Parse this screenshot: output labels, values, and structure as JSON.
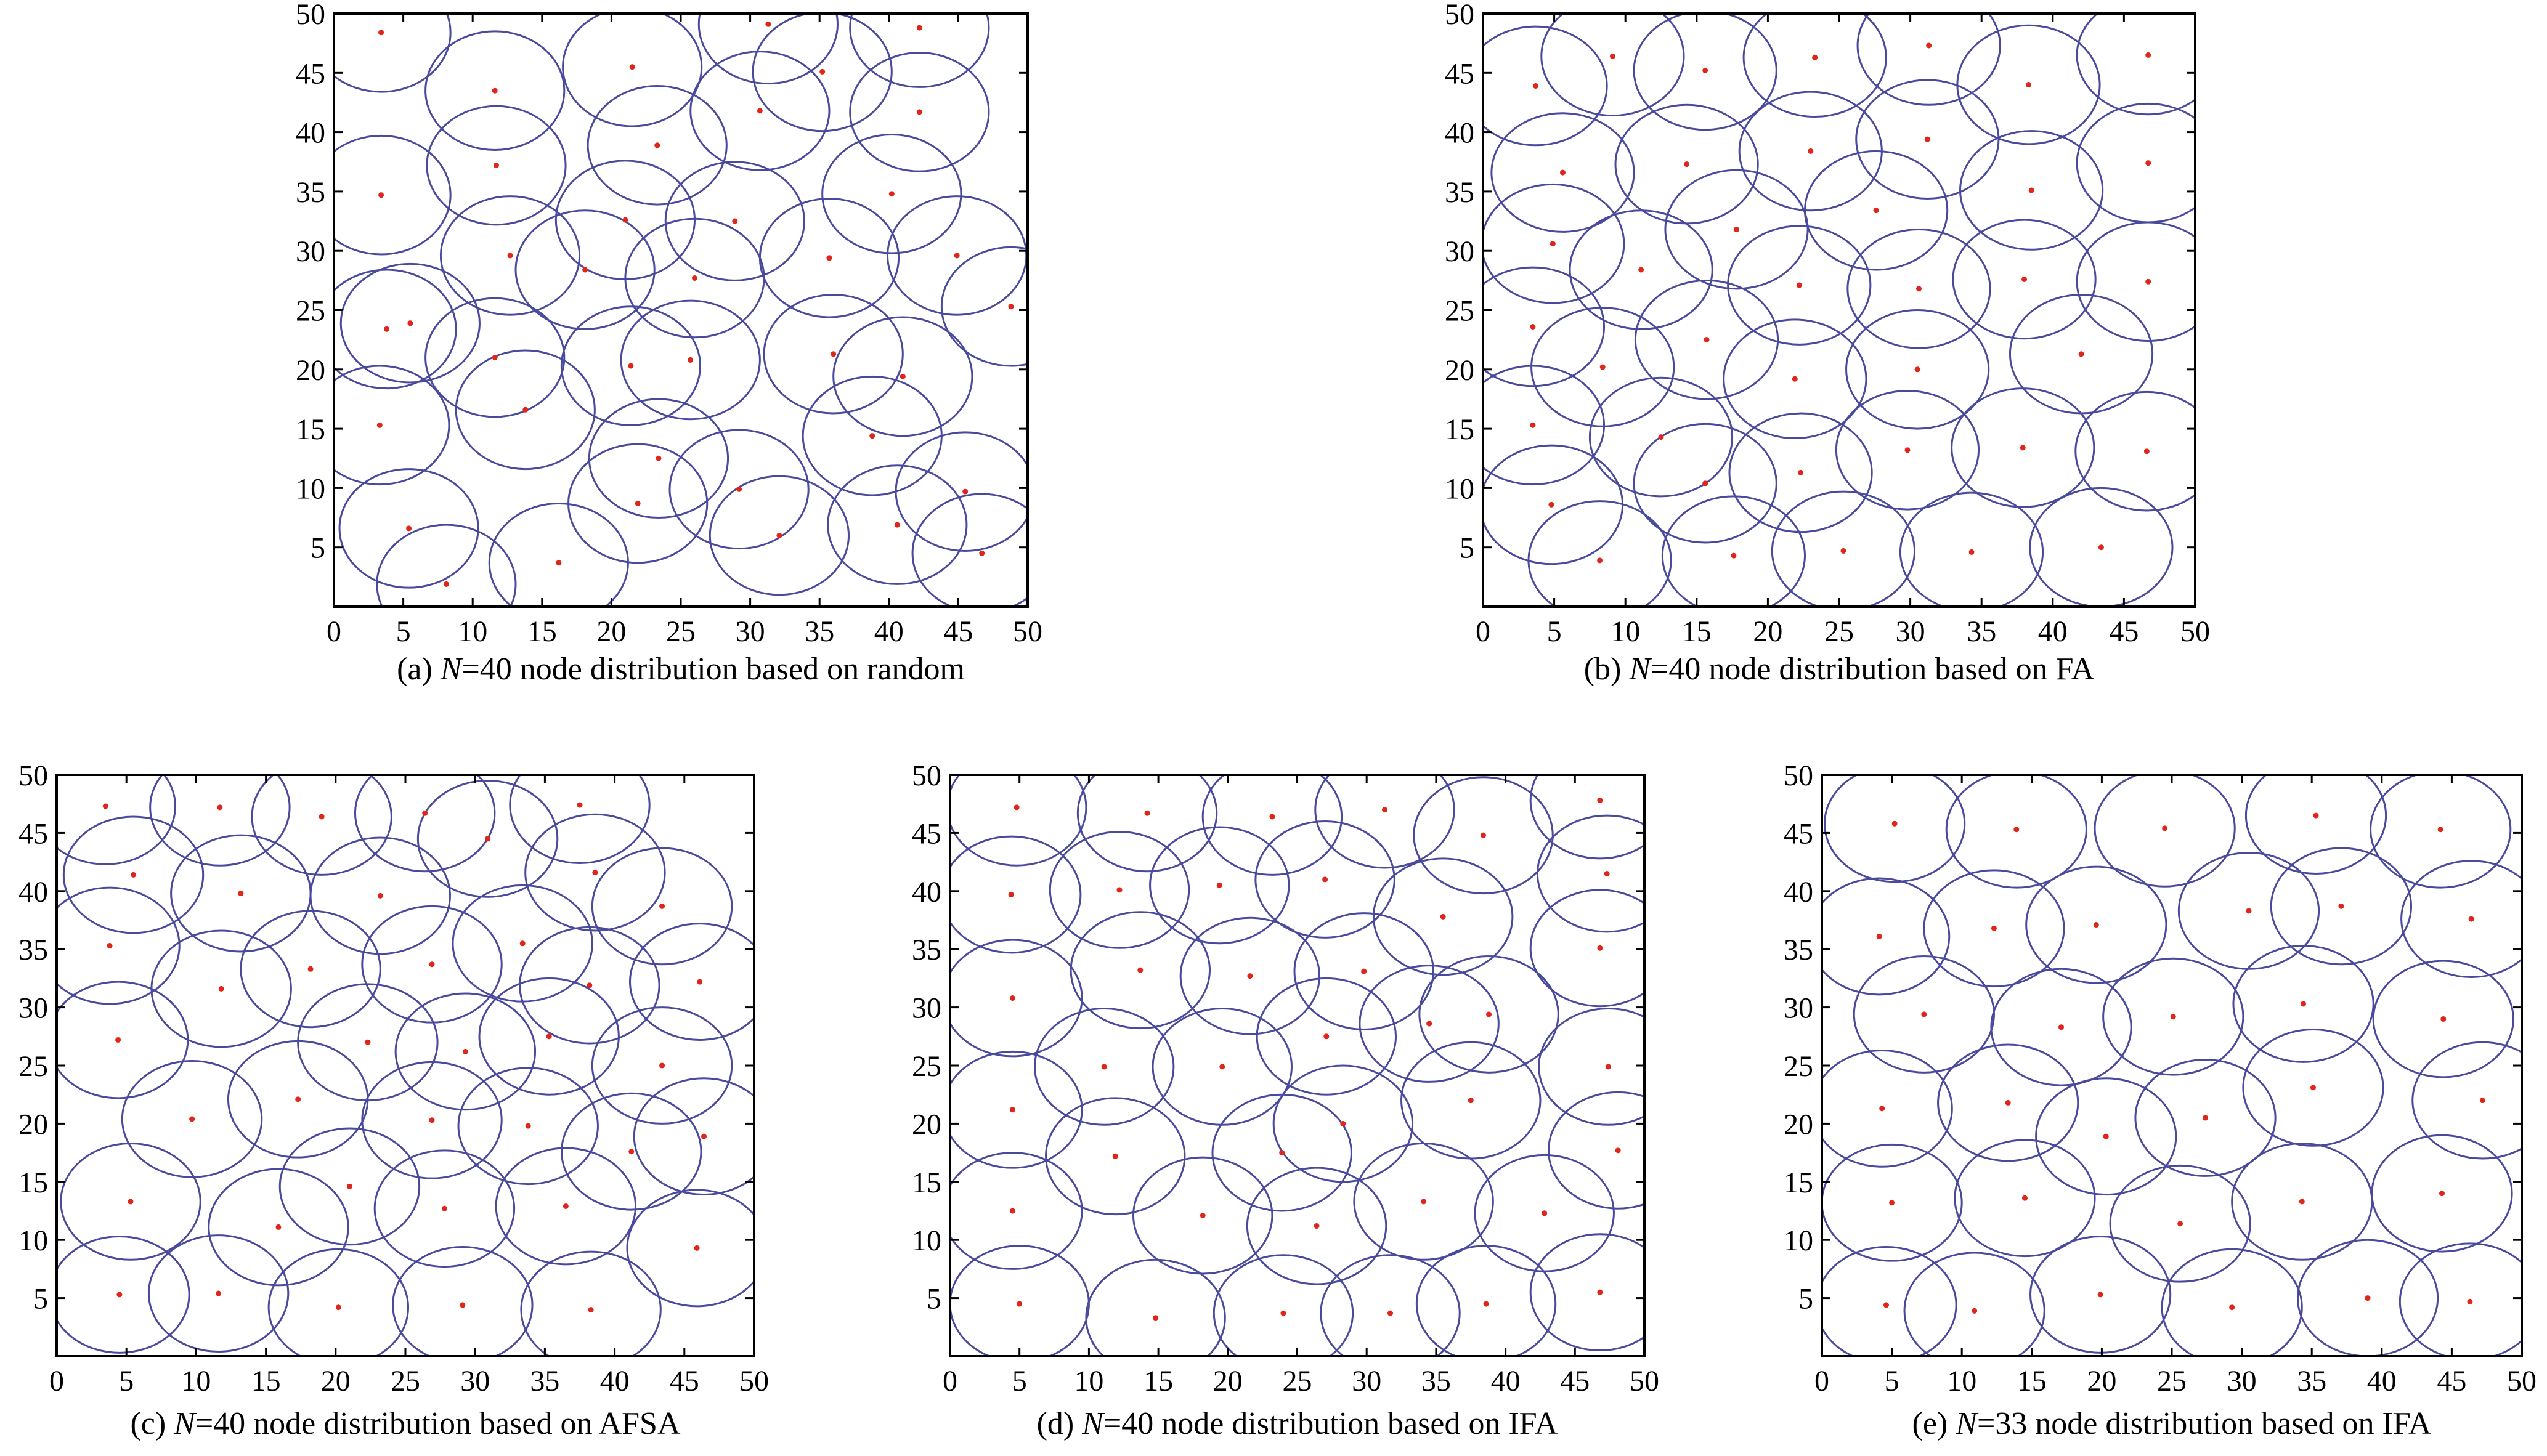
{
  "colors": {
    "circle": "#4a4a9c",
    "node": "#e0251b",
    "axis": "#000000",
    "background": "#ffffff"
  },
  "chart_data": [
    {
      "id": "a",
      "type": "scatter",
      "caption": {
        "label": "(a) ",
        "n_symbol": "N",
        "text": "=40 node distribution based on random"
      },
      "xlim": [
        0,
        50
      ],
      "ylim": [
        0,
        50
      ],
      "xticks": [
        "0",
        "5",
        "10",
        "15",
        "20",
        "25",
        "30",
        "35",
        "40",
        "45",
        "50"
      ],
      "yticks": [
        "5",
        "10",
        "15",
        "20",
        "25",
        "30",
        "35",
        "40",
        "45",
        "50"
      ],
      "coverage_radius": 5,
      "nodes": [
        [
          3.4,
          48.4
        ],
        [
          11.6,
          43.5
        ],
        [
          21.5,
          45.5
        ],
        [
          31.3,
          49.1
        ],
        [
          35.2,
          45.1
        ],
        [
          42.2,
          48.8
        ],
        [
          3.4,
          34.7
        ],
        [
          11.7,
          37.2
        ],
        [
          23.3,
          38.9
        ],
        [
          30.7,
          41.8
        ],
        [
          42.2,
          41.7
        ],
        [
          21.0,
          32.6
        ],
        [
          28.9,
          32.5
        ],
        [
          40.2,
          34.8
        ],
        [
          12.7,
          29.6
        ],
        [
          18.1,
          28.4
        ],
        [
          26.0,
          27.7
        ],
        [
          35.7,
          29.4
        ],
        [
          44.9,
          29.6
        ],
        [
          3.8,
          23.4
        ],
        [
          5.5,
          23.9
        ],
        [
          11.6,
          21.0
        ],
        [
          21.4,
          20.3
        ],
        [
          25.7,
          20.8
        ],
        [
          36.0,
          21.3
        ],
        [
          41.0,
          19.4
        ],
        [
          48.8,
          25.3
        ],
        [
          3.3,
          15.3
        ],
        [
          13.8,
          16.6
        ],
        [
          23.4,
          12.5
        ],
        [
          38.8,
          14.4
        ],
        [
          5.4,
          6.6
        ],
        [
          21.9,
          8.7
        ],
        [
          29.2,
          9.9
        ],
        [
          45.5,
          9.7
        ],
        [
          8.1,
          1.9
        ],
        [
          16.2,
          3.7
        ],
        [
          32.1,
          6.0
        ],
        [
          40.6,
          6.9
        ],
        [
          46.7,
          4.5
        ]
      ]
    },
    {
      "id": "b",
      "type": "scatter",
      "caption": {
        "label": "(b) ",
        "n_symbol": "N",
        "text": "=40 node distribution based on FA"
      },
      "xlim": [
        0,
        50
      ],
      "ylim": [
        0,
        50
      ],
      "xticks": [
        "0",
        "5",
        "10",
        "15",
        "20",
        "25",
        "30",
        "35",
        "40",
        "45",
        "50"
      ],
      "yticks": [
        "5",
        "10",
        "15",
        "20",
        "25",
        "30",
        "35",
        "40",
        "45",
        "50"
      ],
      "coverage_radius": 5,
      "nodes": [
        [
          3.7,
          43.9
        ],
        [
          9.1,
          46.4
        ],
        [
          15.6,
          45.2
        ],
        [
          23.3,
          46.3
        ],
        [
          31.3,
          47.3
        ],
        [
          38.3,
          44.0
        ],
        [
          46.7,
          46.5
        ],
        [
          5.6,
          36.6
        ],
        [
          14.3,
          37.3
        ],
        [
          23.0,
          38.4
        ],
        [
          31.2,
          39.4
        ],
        [
          38.5,
          35.1
        ],
        [
          46.7,
          37.4
        ],
        [
          4.9,
          30.6
        ],
        [
          11.1,
          28.4
        ],
        [
          17.8,
          31.8
        ],
        [
          27.6,
          33.4
        ],
        [
          22.2,
          27.1
        ],
        [
          30.6,
          26.8
        ],
        [
          38.0,
          27.6
        ],
        [
          46.7,
          27.4
        ],
        [
          3.5,
          23.6
        ],
        [
          8.4,
          20.2
        ],
        [
          15.7,
          22.5
        ],
        [
          21.9,
          19.2
        ],
        [
          30.5,
          20.0
        ],
        [
          42.0,
          21.3
        ],
        [
          3.5,
          15.3
        ],
        [
          12.5,
          14.3
        ],
        [
          15.6,
          10.4
        ],
        [
          22.3,
          11.3
        ],
        [
          29.8,
          13.2
        ],
        [
          37.9,
          13.4
        ],
        [
          46.6,
          13.1
        ],
        [
          4.8,
          8.6
        ],
        [
          8.2,
          3.9
        ],
        [
          17.6,
          4.3
        ],
        [
          25.3,
          4.7
        ],
        [
          34.3,
          4.6
        ],
        [
          43.4,
          5.0
        ]
      ]
    },
    {
      "id": "c",
      "type": "scatter",
      "caption": {
        "label": "(c) ",
        "n_symbol": "N",
        "text": "=40 node distribution based on AFSA"
      },
      "xlim": [
        0,
        50
      ],
      "ylim": [
        0,
        50
      ],
      "xticks": [
        "0",
        "5",
        "10",
        "15",
        "20",
        "25",
        "30",
        "35",
        "40",
        "45",
        "50"
      ],
      "yticks": [
        "5",
        "10",
        "15",
        "20",
        "25",
        "30",
        "35",
        "40",
        "45",
        "50"
      ],
      "coverage_radius": 5,
      "nodes": [
        [
          3.5,
          47.3
        ],
        [
          11.7,
          47.2
        ],
        [
          19.0,
          46.4
        ],
        [
          26.4,
          46.7
        ],
        [
          30.9,
          44.5
        ],
        [
          37.5,
          47.4
        ],
        [
          5.5,
          41.4
        ],
        [
          13.2,
          39.8
        ],
        [
          23.2,
          39.6
        ],
        [
          38.6,
          41.6
        ],
        [
          43.4,
          38.7
        ],
        [
          3.8,
          35.3
        ],
        [
          11.8,
          31.6
        ],
        [
          18.2,
          33.3
        ],
        [
          26.9,
          33.7
        ],
        [
          33.4,
          35.5
        ],
        [
          38.2,
          31.9
        ],
        [
          46.1,
          32.2
        ],
        [
          4.4,
          27.2
        ],
        [
          22.3,
          27.0
        ],
        [
          29.3,
          26.2
        ],
        [
          35.3,
          27.5
        ],
        [
          43.4,
          25.0
        ],
        [
          9.7,
          20.4
        ],
        [
          17.3,
          22.1
        ],
        [
          26.9,
          20.3
        ],
        [
          33.8,
          19.8
        ],
        [
          46.4,
          18.9
        ],
        [
          5.3,
          13.3
        ],
        [
          15.9,
          11.1
        ],
        [
          21.0,
          14.6
        ],
        [
          27.8,
          12.7
        ],
        [
          36.5,
          12.9
        ],
        [
          41.2,
          17.6
        ],
        [
          45.9,
          9.3
        ],
        [
          4.5,
          5.3
        ],
        [
          11.6,
          5.4
        ],
        [
          20.2,
          4.2
        ],
        [
          29.1,
          4.4
        ],
        [
          38.3,
          4.0
        ]
      ]
    },
    {
      "id": "d",
      "type": "scatter",
      "caption": {
        "label": "(d) ",
        "n_symbol": "N",
        "text": "=40 node distribution based on IFA"
      },
      "xlim": [
        0,
        50
      ],
      "ylim": [
        0,
        50
      ],
      "xticks": [
        "0",
        "5",
        "10",
        "15",
        "20",
        "25",
        "30",
        "35",
        "40",
        "45",
        "50"
      ],
      "yticks": [
        "5",
        "10",
        "15",
        "20",
        "25",
        "30",
        "35",
        "40",
        "45",
        "50"
      ],
      "coverage_radius": 5,
      "nodes": [
        [
          4.8,
          47.2
        ],
        [
          14.2,
          46.7
        ],
        [
          23.2,
          46.4
        ],
        [
          31.3,
          47.0
        ],
        [
          38.4,
          44.8
        ],
        [
          46.8,
          47.8
        ],
        [
          4.4,
          39.7
        ],
        [
          12.2,
          40.1
        ],
        [
          19.4,
          40.5
        ],
        [
          27.0,
          41.0
        ],
        [
          35.5,
          37.8
        ],
        [
          47.3,
          41.5
        ],
        [
          4.5,
          30.8
        ],
        [
          13.7,
          33.2
        ],
        [
          21.6,
          32.7
        ],
        [
          27.1,
          27.5
        ],
        [
          29.8,
          33.1
        ],
        [
          34.5,
          28.6
        ],
        [
          38.8,
          29.4
        ],
        [
          46.8,
          35.1
        ],
        [
          4.5,
          21.2
        ],
        [
          11.1,
          24.9
        ],
        [
          19.6,
          24.9
        ],
        [
          28.3,
          20.0
        ],
        [
          37.5,
          22.0
        ],
        [
          47.4,
          24.9
        ],
        [
          4.5,
          12.5
        ],
        [
          11.9,
          17.2
        ],
        [
          18.2,
          12.1
        ],
        [
          23.9,
          17.5
        ],
        [
          26.4,
          11.2
        ],
        [
          34.1,
          13.3
        ],
        [
          42.8,
          12.3
        ],
        [
          48.1,
          17.7
        ],
        [
          5.0,
          4.5
        ],
        [
          14.8,
          3.3
        ],
        [
          24.0,
          3.7
        ],
        [
          31.7,
          3.7
        ],
        [
          38.6,
          4.5
        ],
        [
          46.8,
          5.5
        ]
      ]
    },
    {
      "id": "e",
      "type": "scatter",
      "caption": {
        "label": "(e) ",
        "n_symbol": "N",
        "text": "=33 node distribution based on IFA"
      },
      "xlim": [
        0,
        50
      ],
      "ylim": [
        0,
        50
      ],
      "xticks": [
        "0",
        "5",
        "10",
        "15",
        "20",
        "25",
        "30",
        "35",
        "40",
        "45",
        "50"
      ],
      "yticks": [
        "5",
        "10",
        "15",
        "20",
        "25",
        "30",
        "35",
        "40",
        "45",
        "50"
      ],
      "coverage_radius": 5,
      "nodes": [
        [
          5.2,
          45.8
        ],
        [
          13.9,
          45.3
        ],
        [
          24.5,
          45.4
        ],
        [
          35.3,
          46.5
        ],
        [
          44.2,
          45.3
        ],
        [
          4.1,
          36.1
        ],
        [
          12.3,
          36.8
        ],
        [
          19.6,
          37.1
        ],
        [
          30.5,
          38.3
        ],
        [
          37.1,
          38.7
        ],
        [
          46.4,
          37.6
        ],
        [
          7.3,
          29.4
        ],
        [
          17.1,
          28.3
        ],
        [
          25.1,
          29.2
        ],
        [
          34.4,
          30.3
        ],
        [
          44.4,
          29.0
        ],
        [
          4.3,
          21.3
        ],
        [
          13.3,
          21.8
        ],
        [
          20.3,
          18.9
        ],
        [
          27.4,
          20.5
        ],
        [
          35.1,
          23.1
        ],
        [
          47.2,
          22.0
        ],
        [
          5.0,
          13.2
        ],
        [
          14.5,
          13.6
        ],
        [
          25.6,
          11.4
        ],
        [
          34.3,
          13.3
        ],
        [
          44.3,
          14.0
        ],
        [
          4.6,
          4.4
        ],
        [
          10.9,
          3.9
        ],
        [
          19.9,
          5.3
        ],
        [
          29.3,
          4.2
        ],
        [
          39.0,
          5.0
        ],
        [
          46.3,
          4.7
        ]
      ]
    }
  ]
}
